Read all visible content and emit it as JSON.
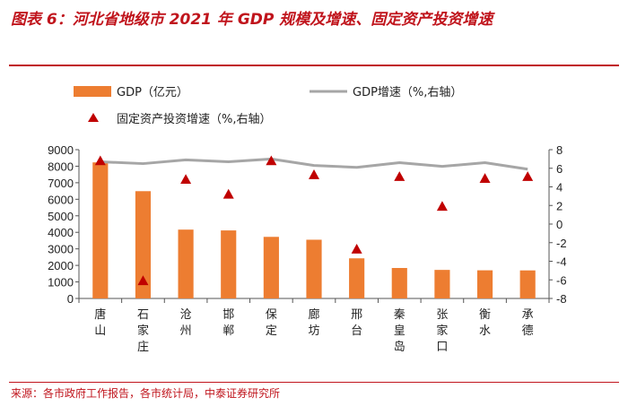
{
  "header": {
    "title": "图表 6：河北省地级市 2021 年 GDP 规模及增速、固定资产投资增速"
  },
  "footer": {
    "source": "来源：各市政府工作报告，各市统计局，中泰证券研究所"
  },
  "colors": {
    "bar": "#ed7d31",
    "line": "#a6a6a6",
    "marker": "#c00000",
    "title": "#c0141c"
  },
  "chart_data": {
    "type": "bar",
    "title": "图表 6：河北省地级市 2021 年 GDP 规模及增速、固定资产投资增速",
    "categories": [
      "唐山",
      "石家庄",
      "沧州",
      "邯郸",
      "保定",
      "廊坊",
      "邢台",
      "秦皇岛",
      "张家口",
      "衡水",
      "承德"
    ],
    "series": [
      {
        "name": "GDP（亿元）",
        "kind": "bar",
        "axis": "left",
        "values": [
          8231,
          6490,
          4164,
          4115,
          3726,
          3553,
          2427,
          1843,
          1727,
          1703,
          1697
        ]
      },
      {
        "name": "GDP增速（%,右轴）",
        "kind": "line",
        "axis": "right",
        "values": [
          6.7,
          6.5,
          6.9,
          6.7,
          7.0,
          6.3,
          6.1,
          6.6,
          6.2,
          6.6,
          5.9
        ]
      },
      {
        "name": "固定资产投资增速（%,右轴）",
        "kind": "marker",
        "axis": "right",
        "values": [
          6.8,
          -6.1,
          4.8,
          3.2,
          6.8,
          5.3,
          -2.7,
          5.1,
          1.9,
          4.9,
          5.1
        ]
      }
    ],
    "y_left": {
      "lim": [
        0,
        9000
      ],
      "ticks": [
        "0",
        "1000",
        "2000",
        "3000",
        "4000",
        "5000",
        "6000",
        "7000",
        "8000",
        "9000"
      ]
    },
    "y_right": {
      "lim": [
        -8,
        8
      ],
      "ticks": [
        "-8",
        "-6",
        "-4",
        "-2",
        "0",
        "2",
        "4",
        "6",
        "8"
      ]
    },
    "legend": {
      "gdp": "GDP（亿元）",
      "growth": "GDP增速（%,右轴）",
      "invest": "固定资产投资增速（%,右轴）"
    },
    "xlabel": "",
    "ylabel": "",
    "grid": false
  }
}
